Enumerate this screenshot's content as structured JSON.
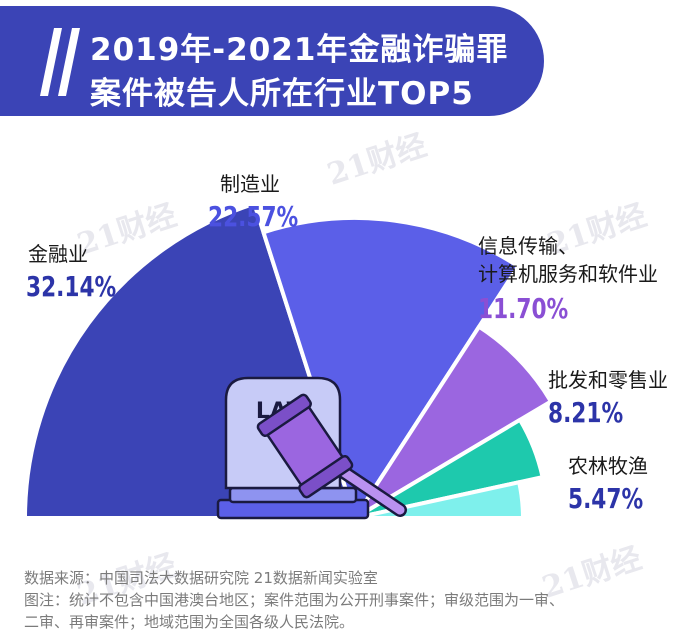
{
  "title": {
    "line1": "2019年-2021年金融诈骗罪",
    "line2": "案件被告人所在行业TOP5"
  },
  "chart_data": {
    "type": "pie",
    "unit": "%",
    "categories": [
      "金融业",
      "制造业",
      "信息传输、计算机服务和软件业",
      "批发和零售业",
      "农林牧渔"
    ],
    "label_lines": [
      [
        "金融业"
      ],
      [
        "制造业"
      ],
      [
        "信息传输、",
        "计算机服务和软件业"
      ],
      [
        "批发和零售业"
      ],
      [
        "农林牧渔"
      ]
    ],
    "value_labels": [
      "32.14%",
      "22.57%",
      "11.70%",
      "8.21%",
      "5.47%"
    ],
    "values": [
      32.14,
      22.57,
      11.7,
      8.21,
      5.47
    ]
  },
  "colors": {
    "header": "#3b44b6",
    "slices": [
      "#3b44b6",
      "#5b5fe8",
      "#9b66e0",
      "#1ec9ad",
      "#7ef0ec"
    ],
    "value_text": [
      "#2c34a8",
      "#4b51e0",
      "#8a4fd4",
      "#2c34a8",
      "#2c34a8"
    ]
  },
  "center_icon": {
    "name": "gavel-and-law-book",
    "text": "LAW"
  },
  "watermark": "21财经",
  "footer": {
    "source": "数据来源：中国司法大数据研究院 21数据新闻实验室",
    "note_line1": "图注：统计不包含中国港澳台地区；案件范围为公开刑事案件；审级范围为一审、",
    "note_line2": "二审、再审案件；地域范围为全国各级人民法院。"
  }
}
